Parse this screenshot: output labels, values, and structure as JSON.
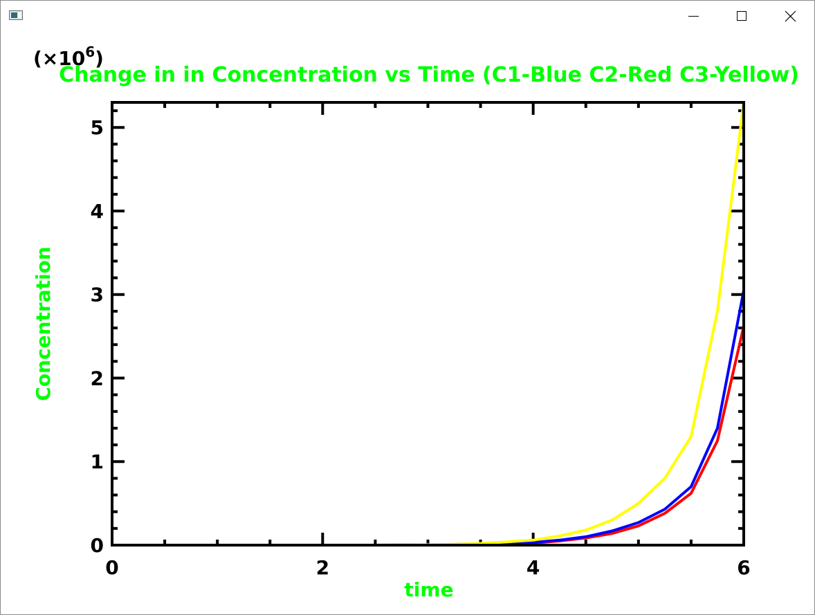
{
  "window": {
    "icon": "app-window-icon",
    "buttons": [
      "minimize-icon",
      "maximize-icon",
      "close-icon"
    ]
  },
  "chart_data": {
    "type": "line",
    "title": "Change in in Concentration vs Time (C1-Blue C2-Red C3-Yellow)",
    "xlabel": "time",
    "ylabel": "Concentration",
    "y_multiplier_label": "(×10",
    "y_multiplier_exponent": "6",
    "y_multiplier_close": ")",
    "xlim": [
      0,
      6
    ],
    "ylim": [
      0,
      5.3
    ],
    "x_ticks": [
      0,
      2,
      4,
      6
    ],
    "x_tick_labels": [
      "0",
      "2",
      "4",
      "6"
    ],
    "y_ticks": [
      0,
      1,
      2,
      3,
      4,
      5
    ],
    "y_tick_labels": [
      "0",
      "1",
      "2",
      "3",
      "4",
      "5"
    ],
    "grid": false,
    "colors": {
      "text": "#00ff00",
      "axes": "#000000",
      "background": "#ffffff"
    },
    "x": [
      0,
      0.5,
      1,
      1.5,
      2,
      2.5,
      3,
      3.25,
      3.5,
      3.75,
      4,
      4.25,
      4.5,
      4.75,
      5,
      5.25,
      5.5,
      5.75,
      6
    ],
    "series": [
      {
        "name": "C1",
        "color": "#0000ff",
        "values": [
          0,
          0,
          0,
          0,
          0,
          0,
          0.002,
          0.004,
          0.008,
          0.016,
          0.032,
          0.06,
          0.1,
          0.17,
          0.27,
          0.43,
          0.7,
          1.4,
          3.05
        ]
      },
      {
        "name": "C2",
        "color": "#ff0000",
        "values": [
          0,
          0,
          0,
          0,
          0,
          0,
          0.001,
          0.003,
          0.006,
          0.012,
          0.025,
          0.05,
          0.085,
          0.14,
          0.23,
          0.38,
          0.62,
          1.25,
          2.62
        ]
      },
      {
        "name": "C3",
        "color": "#ffff00",
        "values": [
          0,
          0,
          0,
          0,
          0,
          0,
          0.005,
          0.01,
          0.02,
          0.04,
          0.06,
          0.11,
          0.18,
          0.3,
          0.5,
          0.8,
          1.3,
          2.8,
          5.3
        ]
      }
    ]
  }
}
